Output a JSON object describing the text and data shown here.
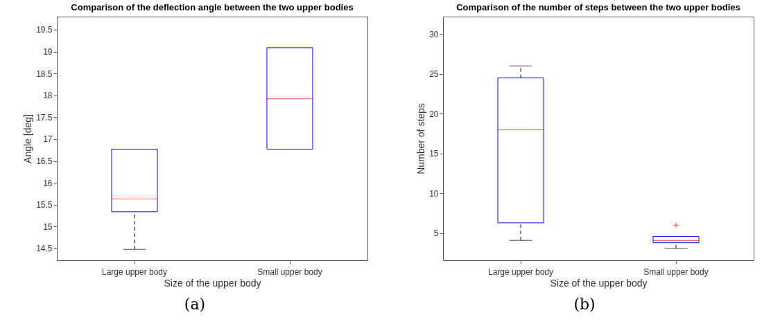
{
  "chart_data": [
    {
      "type": "box",
      "title": "Comparison of the deflection angle between the two upper bodies",
      "xlabel": "Size of the upper body",
      "ylabel": "Angle [deg]",
      "categories": [
        "Large upper body",
        "Small upper body"
      ],
      "boxes": [
        {
          "low": 14.48,
          "q1": 15.34,
          "median": 15.63,
          "q3": 16.77,
          "high": 16.77
        },
        {
          "low": 16.77,
          "q1": 16.77,
          "median": 17.92,
          "q3": 19.09,
          "high": 19.09
        }
      ],
      "ylim": [
        14.23,
        19.8
      ],
      "yticks": [
        14.5,
        15,
        15.5,
        16,
        16.5,
        17,
        17.5,
        18,
        18.5,
        19,
        19.5
      ],
      "annotations": [
        "(a)"
      ]
    },
    {
      "type": "box",
      "title": "Comparison of the number of steps between the two upper bodies",
      "xlabel": "Size of the upper body",
      "ylabel": "Number of steps",
      "categories": [
        "Large upper body",
        "Small upper body"
      ],
      "boxes": [
        {
          "low": 4.1,
          "q1": 6.3,
          "median": 18,
          "q3": 24.5,
          "high": 26
        },
        {
          "low": 3.1,
          "q1": 3.8,
          "median": 4.1,
          "q3": 4.6,
          "high": 4.6,
          "outliers": [
            6
          ]
        }
      ],
      "ylim": [
        1.6,
        32.2
      ],
      "yticks": [
        5,
        10,
        15,
        20,
        25,
        30
      ],
      "annotations": [
        "(b)"
      ]
    }
  ]
}
